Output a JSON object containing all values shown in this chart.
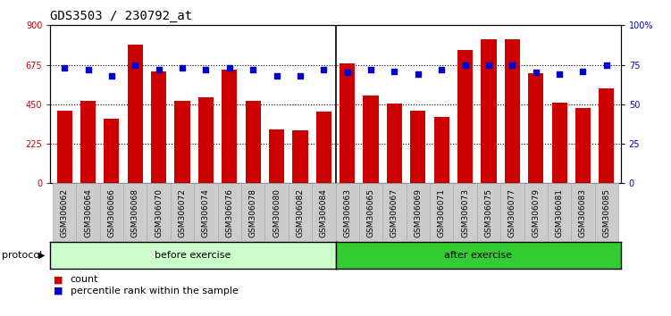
{
  "title": "GDS3503 / 230792_at",
  "categories": [
    "GSM306062",
    "GSM306064",
    "GSM306066",
    "GSM306068",
    "GSM306070",
    "GSM306072",
    "GSM306074",
    "GSM306076",
    "GSM306078",
    "GSM306080",
    "GSM306082",
    "GSM306084",
    "GSM306063",
    "GSM306065",
    "GSM306067",
    "GSM306069",
    "GSM306071",
    "GSM306073",
    "GSM306075",
    "GSM306077",
    "GSM306079",
    "GSM306081",
    "GSM306083",
    "GSM306085"
  ],
  "counts": [
    415,
    470,
    370,
    790,
    635,
    470,
    490,
    645,
    470,
    305,
    300,
    410,
    685,
    500,
    455,
    415,
    380,
    760,
    820,
    820,
    625,
    460,
    430,
    540
  ],
  "percentiles": [
    73,
    72,
    68,
    75,
    72,
    73,
    72,
    73,
    72,
    68,
    68,
    72,
    70,
    72,
    71,
    69,
    72,
    75,
    75,
    75,
    70,
    69,
    71,
    75
  ],
  "before_count": 12,
  "after_count": 12,
  "before_label": "before exercise",
  "after_label": "after exercise",
  "protocol_label": "protocol",
  "legend_count": "count",
  "legend_percentile": "percentile rank within the sample",
  "ylim_left": [
    0,
    900
  ],
  "ylim_right": [
    0,
    100
  ],
  "yticks_left": [
    0,
    225,
    450,
    675,
    900
  ],
  "yticks_right": [
    0,
    25,
    50,
    75,
    100
  ],
  "bar_color": "#cc0000",
  "dot_color": "#0000cc",
  "before_bg": "#ccffcc",
  "after_bg": "#33cc33",
  "axis_bg": "#ffffff",
  "tick_bg": "#cccccc",
  "title_fontsize": 10,
  "tick_fontsize": 6.5,
  "label_fontsize": 8,
  "legend_fontsize": 8
}
